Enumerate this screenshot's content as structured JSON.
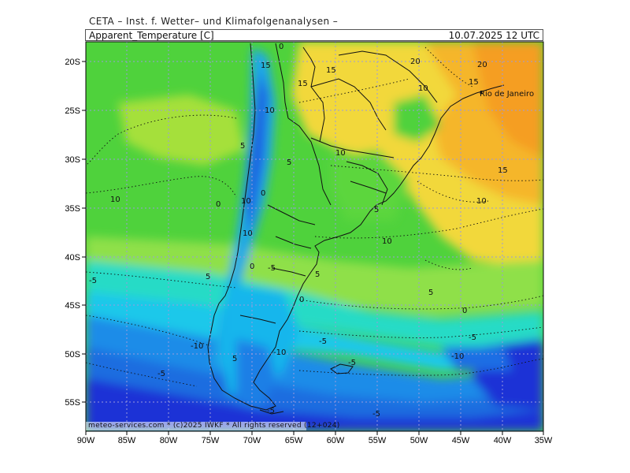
{
  "header": {
    "institute": "CETA – Inst. f. Wetter– und Klimafolgenanalysen –",
    "parameter": "Apparent_Temperature [C]",
    "valid_time": "10.07.2025  12 UTC"
  },
  "footer": {
    "copyright": "meteo-services.com * (c)2025 IWKF * All rights reserved (12+024)"
  },
  "axes": {
    "lon_labels": [
      "90W",
      "85W",
      "80W",
      "75W",
      "70W",
      "65W",
      "60W",
      "55W",
      "50W",
      "45W",
      "40W",
      "35W"
    ],
    "lat_labels": [
      "20S",
      "25S",
      "30S",
      "35S",
      "40S",
      "45S",
      "50S",
      "55S"
    ]
  },
  "place_labels": {
    "rio": "Rio de Janeiro"
  },
  "contour_labels": {
    "c1": "0",
    "c2": "15",
    "c3": "15",
    "c4": "15",
    "c5": "20",
    "c6": "10",
    "c7": "15",
    "c8": "20",
    "c9": "10",
    "c10": "5",
    "c11": "10",
    "c12": "5",
    "c13": "10",
    "c14": "15",
    "c15": "0",
    "c16": "0",
    "c17": "10",
    "c18": "5",
    "c19": "10",
    "c20": "10",
    "c21": "10",
    "c22": "-5",
    "c23": "5",
    "c24": "-5",
    "c25": "5",
    "c26": "0",
    "c27": "5",
    "c28": "0",
    "c29": "-5",
    "c30": "-5",
    "c31": "-10",
    "c32": "-5",
    "c33": "-10",
    "c34": "-10",
    "c35": "-5",
    "c36": "-5",
    "c37": "-5",
    "c38": "5",
    "c39": "0"
  },
  "colors": {
    "orange": "#f5a623",
    "yellow": "#f4dc3a",
    "green": "#53d13d",
    "cyan": "#18d6e8",
    "blue": "#1a7fe6",
    "deep_blue": "#1f33d6"
  }
}
